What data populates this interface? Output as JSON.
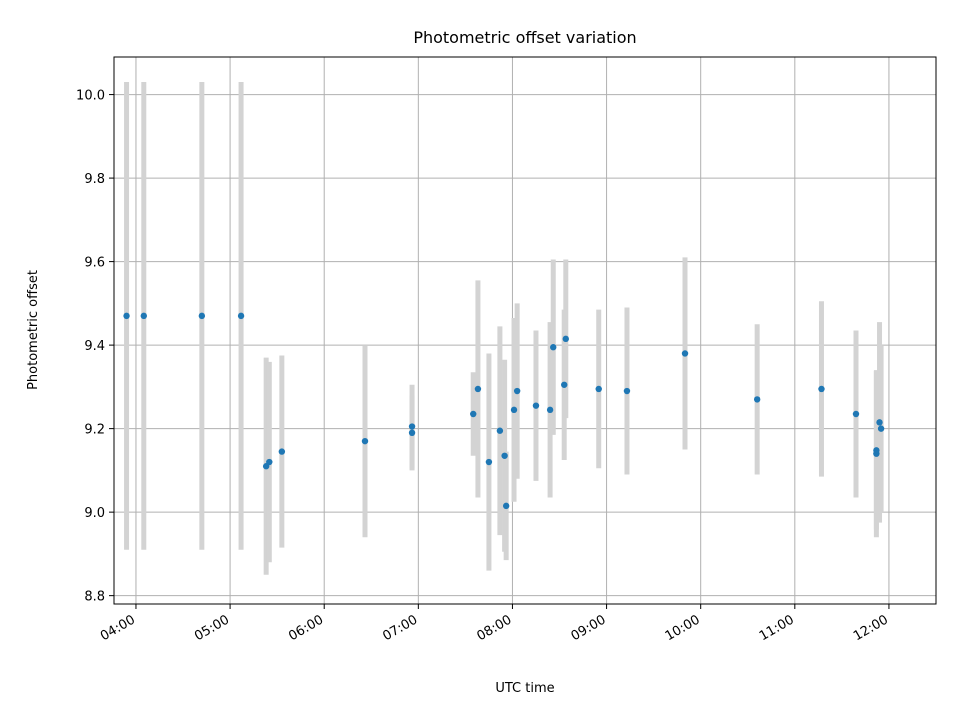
{
  "chart_data": {
    "type": "scatter",
    "title": "Photometric offset variation",
    "xlabel": "UTC time",
    "ylabel": "Photometric offset",
    "x_ticks": [
      "04:00",
      "05:00",
      "06:00",
      "07:00",
      "08:00",
      "09:00",
      "10:00",
      "11:00",
      "12:00"
    ],
    "y_ticks": [
      "8.8",
      "9.0",
      "9.2",
      "9.4",
      "9.6",
      "9.8",
      "10.0"
    ],
    "xlim": [
      "03:46",
      "12:30"
    ],
    "ylim": [
      8.78,
      10.09
    ],
    "grid": true,
    "colors": {
      "point": "#1f77b4",
      "errorbar": "#d3d3d3",
      "grid": "#b0b0b0"
    },
    "points": [
      {
        "x": "03:54",
        "y": 9.47,
        "yerr": 0.56
      },
      {
        "x": "04:05",
        "y": 9.47,
        "yerr": 0.56
      },
      {
        "x": "04:42",
        "y": 9.47,
        "yerr": 0.56
      },
      {
        "x": "05:07",
        "y": 9.47,
        "yerr": 0.56
      },
      {
        "x": "05:23",
        "y": 9.11,
        "yerr": 0.26
      },
      {
        "x": "05:25",
        "y": 9.12,
        "yerr": 0.24
      },
      {
        "x": "05:33",
        "y": 9.145,
        "yerr": 0.23
      },
      {
        "x": "06:26",
        "y": 9.17,
        "yerr": 0.23
      },
      {
        "x": "06:56",
        "y": 9.19,
        "yerr": 0.09
      },
      {
        "x": "06:56",
        "y": 9.205,
        "yerr": 0.1
      },
      {
        "x": "07:35",
        "y": 9.235,
        "yerr": 0.1
      },
      {
        "x": "07:38",
        "y": 9.295,
        "yerr": 0.26
      },
      {
        "x": "07:45",
        "y": 9.12,
        "yerr": 0.26
      },
      {
        "x": "07:52",
        "y": 9.195,
        "yerr": 0.25
      },
      {
        "x": "07:55",
        "y": 9.135,
        "yerr": 0.23
      },
      {
        "x": "07:56",
        "y": 9.015,
        "yerr": 0.13
      },
      {
        "x": "08:01",
        "y": 9.245,
        "yerr": 0.22
      },
      {
        "x": "08:03",
        "y": 9.29,
        "yerr": 0.21
      },
      {
        "x": "08:15",
        "y": 9.255,
        "yerr": 0.18
      },
      {
        "x": "08:24",
        "y": 9.245,
        "yerr": 0.21
      },
      {
        "x": "08:26",
        "y": 9.395,
        "yerr": 0.21
      },
      {
        "x": "08:33",
        "y": 9.305,
        "yerr": 0.18
      },
      {
        "x": "08:34",
        "y": 9.415,
        "yerr": 0.19
      },
      {
        "x": "08:55",
        "y": 9.295,
        "yerr": 0.19
      },
      {
        "x": "09:13",
        "y": 9.29,
        "yerr": 0.2
      },
      {
        "x": "09:50",
        "y": 9.38,
        "yerr": 0.23
      },
      {
        "x": "10:36",
        "y": 9.27,
        "yerr": 0.18
      },
      {
        "x": "11:17",
        "y": 9.295,
        "yerr": 0.21
      },
      {
        "x": "11:39",
        "y": 9.235,
        "yerr": 0.2
      },
      {
        "x": "11:52",
        "y": 9.14,
        "yerr": 0.2
      },
      {
        "x": "11:52",
        "y": 9.148,
        "yerr": 0.19
      },
      {
        "x": "11:54",
        "y": 9.215,
        "yerr": 0.24
      },
      {
        "x": "11:55",
        "y": 9.2,
        "yerr": 0.2
      }
    ]
  }
}
